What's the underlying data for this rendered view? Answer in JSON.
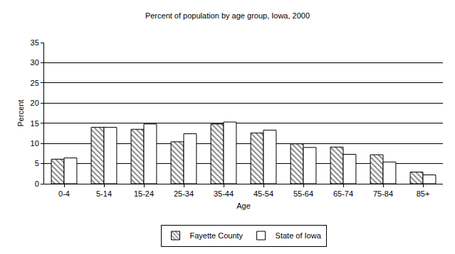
{
  "chart_data": {
    "type": "bar",
    "title": "Percent of population by age group, Iowa, 2000",
    "x_label": "Age",
    "y_label": "Percent",
    "categories": [
      "0-4",
      "5-14",
      "15-24",
      "25-34",
      "35-44",
      "45-54",
      "55-64",
      "65-74",
      "75-84",
      "85+"
    ],
    "series": [
      {
        "name": "Fayette County",
        "color": "#000000",
        "marker": "hatch",
        "values": [
          6.1,
          14.0,
          13.5,
          10.4,
          14.8,
          12.6,
          9.9,
          9.1,
          7.2,
          2.9
        ]
      },
      {
        "name": "State of Iowa",
        "color": "#ffffff",
        "marker": "solid",
        "values": [
          6.4,
          14.0,
          14.8,
          12.4,
          15.3,
          13.3,
          9.0,
          7.3,
          5.4,
          2.2
        ]
      }
    ],
    "ylim": [
      0,
      35
    ],
    "yticks": [
      0,
      5,
      10,
      15,
      20,
      25,
      30,
      35
    ],
    "grid": true,
    "legend": "bottom"
  }
}
